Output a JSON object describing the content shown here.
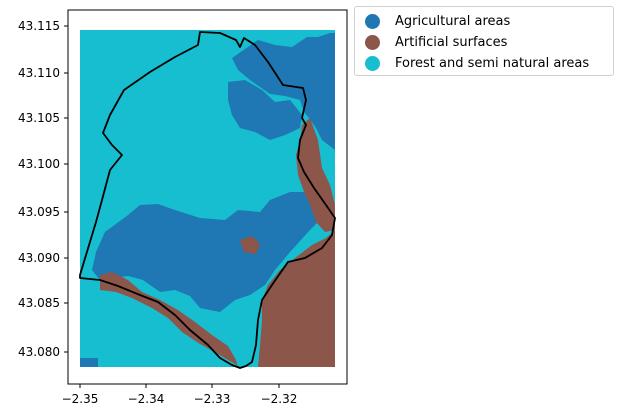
{
  "map": {
    "x_ticks": [
      "−2.35",
      "−2.34",
      "−2.33",
      "−2.32"
    ],
    "y_ticks": [
      "43.080",
      "43.085",
      "43.090",
      "43.095",
      "43.100",
      "43.105",
      "43.110",
      "43.115"
    ],
    "x_range": [
      -2.351,
      -2.3125
    ],
    "y_range": [
      43.0773,
      43.1156
    ],
    "colors": {
      "agricultural": "#1f77b4",
      "artificial": "#8c564b",
      "forest": "#17becf",
      "boundary": "#000000"
    }
  },
  "legend": {
    "items": [
      {
        "label": "Agricultural areas",
        "color": "#1f77b4"
      },
      {
        "label": "Artificial surfaces",
        "color": "#8c564b"
      },
      {
        "label": "Forest and semi natural areas",
        "color": "#17becf"
      }
    ]
  }
}
